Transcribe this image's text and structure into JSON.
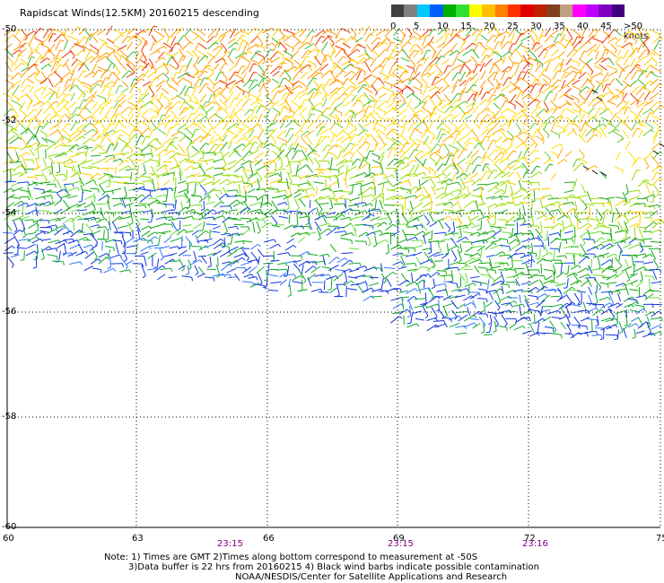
{
  "title": "Rapidscat Winds(12.5KM) 20160215 descending",
  "colorbar": {
    "labels": [
      "0",
      "5",
      "10",
      "15",
      "20",
      "25",
      "30",
      "35",
      "40",
      "45",
      ">50 knots"
    ],
    "colors": [
      "#404040",
      "#808080",
      "#00c8ff",
      "#0060ff",
      "#00b000",
      "#30e030",
      "#ffff00",
      "#ffc000",
      "#ff8000",
      "#ff3000",
      "#e00000",
      "#c02000",
      "#804020",
      "#c0a080",
      "#ff00ff",
      "#c000ff",
      "#8000c0",
      "#400080"
    ]
  },
  "map": {
    "lat_labels": [
      "-50",
      "-52",
      "-54",
      "-56",
      "-58",
      "-60"
    ],
    "lon_labels": [
      "60",
      "63",
      "66",
      "69",
      "72",
      "75"
    ],
    "time_labels": [
      "23:15",
      "23:15",
      "23:16"
    ]
  },
  "notes": [
    "Note: 1) Times are GMT 2)Times along bottom correspond to measurement at -50S",
    "3)Data buffer is 22 hrs from 20160215 4) Black wind barbs indicate possible contamination",
    "NOAA/NESDIS/Center for Satellite Applications and Research"
  ]
}
